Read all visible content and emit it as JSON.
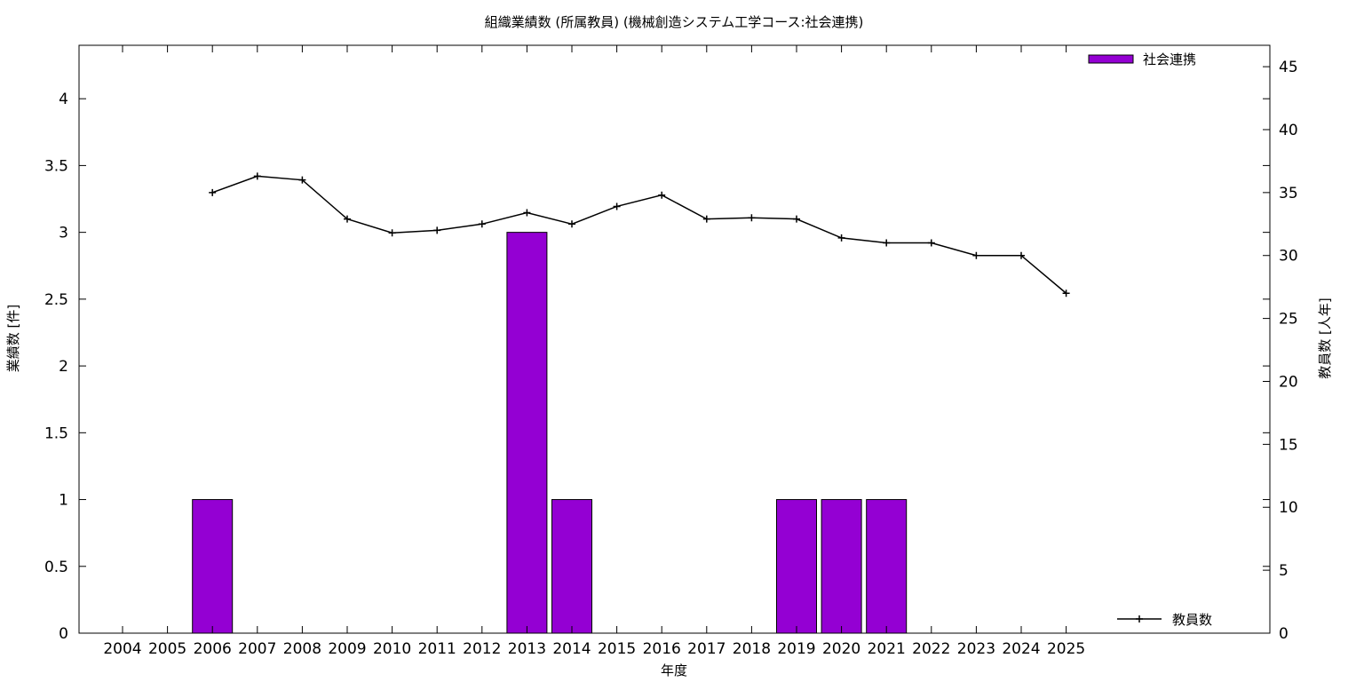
{
  "chart_data": {
    "type": "bar",
    "title": "組織業績数 (所属教員) (機械創造システム工学コース:社会連携)",
    "xlabel": "年度",
    "ylabel": "業績数 [件]",
    "y2label": "教員数 [人年]",
    "categories": [
      "2004",
      "2005",
      "2006",
      "2007",
      "2008",
      "2009",
      "2010",
      "2011",
      "2012",
      "2013",
      "2014",
      "2015",
      "2016",
      "2017",
      "2018",
      "2019",
      "2020",
      "2021",
      "2022",
      "2023",
      "2024",
      "2025"
    ],
    "ylim": [
      0,
      4.4
    ],
    "y2lim": [
      0,
      46.7
    ],
    "yticks": [
      "0",
      "0.5",
      "1",
      "1.5",
      "2",
      "2.5",
      "3",
      "3.5",
      "4"
    ],
    "y2ticks": [
      "0",
      "5",
      "10",
      "15",
      "20",
      "25",
      "30",
      "35",
      "40",
      "45"
    ],
    "grid": false,
    "legend_placement": "top-right",
    "series": [
      {
        "name": "社会連携",
        "type": "bar",
        "axis": "left",
        "color": "#9400d3",
        "values": [
          0,
          0,
          1,
          0,
          0,
          0,
          0,
          0,
          0,
          3,
          1,
          0,
          0,
          0,
          0,
          1,
          1,
          1,
          0,
          0,
          0,
          0
        ]
      },
      {
        "name": "教員数",
        "type": "line",
        "axis": "right",
        "color": "#000000",
        "marker": "plus",
        "values": [
          null,
          null,
          35.0,
          36.3,
          36.0,
          32.9,
          31.8,
          32.0,
          32.5,
          33.4,
          32.5,
          33.9,
          34.8,
          32.9,
          33.0,
          32.9,
          31.4,
          31.0,
          31.0,
          30.0,
          30.0,
          27.0
        ]
      }
    ]
  }
}
